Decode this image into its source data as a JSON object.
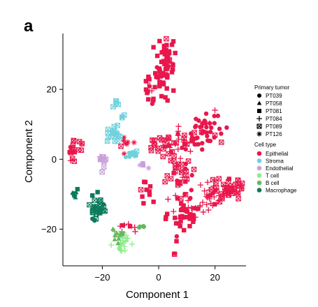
{
  "panel_letter": "a",
  "chart_data": {
    "type": "scatter",
    "xlabel": "Component 1",
    "ylabel": "Component 2",
    "xlim": [
      -34,
      31
    ],
    "ylim": [
      -30.5,
      36
    ],
    "xticks": [
      -20,
      0,
      20
    ],
    "yticks": [
      -20,
      0,
      20
    ],
    "grid": false,
    "legend_placement": "right",
    "legend": {
      "shape_title": "Primary tumor",
      "shape_entries": [
        {
          "label": "PT039",
          "marker": "circle"
        },
        {
          "label": "PT058",
          "marker": "triangle"
        },
        {
          "label": "PT081",
          "marker": "square"
        },
        {
          "label": "PT084",
          "marker": "plus"
        },
        {
          "label": "PT089",
          "marker": "boxed-x"
        },
        {
          "label": "PT126",
          "marker": "asterisk"
        }
      ],
      "color_title": "Cell type",
      "color_entries": [
        {
          "label": "Epithelial",
          "color": "#e8174c"
        },
        {
          "label": "Stroma",
          "color": "#6fd1dc"
        },
        {
          "label": "Endothelial",
          "color": "#c9a0dc"
        },
        {
          "label": "T cell",
          "color": "#8bed8a"
        },
        {
          "label": "B cell",
          "color": "#66b85e"
        },
        {
          "label": "Macrophage",
          "color": "#0c7a5c"
        }
      ]
    },
    "clusters": [
      {
        "cell_type": "Epithelial",
        "tumor": "PT081",
        "cx": 2.5,
        "cy": 27,
        "sx": 1.8,
        "sy": 4.5,
        "n": 60
      },
      {
        "cell_type": "Epithelial",
        "tumor": "PT081",
        "cx": -3.0,
        "cy": 17,
        "sx": 1.2,
        "sy": 2.5,
        "n": 14
      },
      {
        "cell_type": "Epithelial",
        "tumor": "PT039",
        "cx": 16.5,
        "cy": 8,
        "sx": 3.0,
        "sy": 3.0,
        "n": 45
      },
      {
        "cell_type": "Epithelial",
        "tumor": "PT084",
        "cx": 9.0,
        "cy": 6,
        "sx": 2.5,
        "sy": 1.8,
        "n": 18
      },
      {
        "cell_type": "Epithelial",
        "tumor": "PT089",
        "cx": 2.0,
        "cy": 4,
        "sx": 2.8,
        "sy": 1.8,
        "n": 28
      },
      {
        "cell_type": "Epithelial",
        "tumor": "PT089",
        "cx": 7.5,
        "cy": -4,
        "sx": 2.5,
        "sy": 3.0,
        "n": 35
      },
      {
        "cell_type": "Epithelial",
        "tumor": "PT081",
        "cx": 8.5,
        "cy": -17,
        "sx": 2.8,
        "sy": 3.0,
        "n": 40
      },
      {
        "cell_type": "Epithelial",
        "tumor": "PT084",
        "cx": 16.0,
        "cy": -11,
        "sx": 3.0,
        "sy": 2.5,
        "n": 30
      },
      {
        "cell_type": "Epithelial",
        "tumor": "PT089",
        "cx": 25.0,
        "cy": -8.5,
        "sx": 3.0,
        "sy": 1.8,
        "n": 45
      },
      {
        "cell_type": "Epithelial",
        "tumor": "PT081",
        "cx": -4.5,
        "cy": -9,
        "sx": 1.5,
        "sy": 1.2,
        "n": 10
      },
      {
        "cell_type": "Epithelial",
        "tumor": "PT089",
        "cx": -29.5,
        "cy": 3,
        "sx": 1.8,
        "sy": 1.5,
        "n": 18
      },
      {
        "cell_type": "Epithelial",
        "tumor": "PT084",
        "cx": -10.0,
        "cy": -19.5,
        "sx": 2.5,
        "sy": 1.2,
        "n": 8
      },
      {
        "cell_type": "Epithelial",
        "tumor": "PT126",
        "cx": -12.5,
        "cy": 5,
        "sx": 1.5,
        "sy": 1.2,
        "n": 8
      },
      {
        "cell_type": "Stroma",
        "tumor": "PT089",
        "cx": -16.0,
        "cy": 7.5,
        "sx": 1.5,
        "sy": 1.3,
        "n": 18
      },
      {
        "cell_type": "Stroma",
        "tumor": "PT089",
        "cx": -14.5,
        "cy": 16.5,
        "sx": 0.8,
        "sy": 0.8,
        "n": 6
      },
      {
        "cell_type": "Stroma",
        "tumor": "PT039",
        "cx": -10.5,
        "cy": 1.5,
        "sx": 1.5,
        "sy": 1.0,
        "n": 10
      },
      {
        "cell_type": "Stroma",
        "tumor": "PT089",
        "cx": -12.5,
        "cy": 12,
        "sx": 0.6,
        "sy": 0.6,
        "n": 3
      },
      {
        "cell_type": "Endothelial",
        "tumor": "PT089",
        "cx": -19.5,
        "cy": 0,
        "sx": 1.0,
        "sy": 0.9,
        "n": 10
      },
      {
        "cell_type": "Endothelial",
        "tumor": "PT126",
        "cx": -5.5,
        "cy": -1.5,
        "sx": 0.8,
        "sy": 0.6,
        "n": 4
      },
      {
        "cell_type": "Macrophage",
        "tumor": "PT089",
        "cx": -22.0,
        "cy": -14,
        "sx": 1.3,
        "sy": 1.8,
        "n": 28
      },
      {
        "cell_type": "Macrophage",
        "tumor": "PT058",
        "cx": -29.5,
        "cy": -10.5,
        "sx": 0.6,
        "sy": 0.8,
        "n": 8
      },
      {
        "cell_type": "T cell",
        "tumor": "PT084",
        "cx": -13.5,
        "cy": -24,
        "sx": 1.6,
        "sy": 1.5,
        "n": 24
      },
      {
        "cell_type": "B cell",
        "tumor": "PT058",
        "cx": -14.5,
        "cy": -22,
        "sx": 1.0,
        "sy": 1.3,
        "n": 10
      },
      {
        "cell_type": "B cell",
        "tumor": "PT039",
        "cx": -6.0,
        "cy": -19,
        "sx": 0.8,
        "sy": 0.5,
        "n": 4
      }
    ]
  }
}
